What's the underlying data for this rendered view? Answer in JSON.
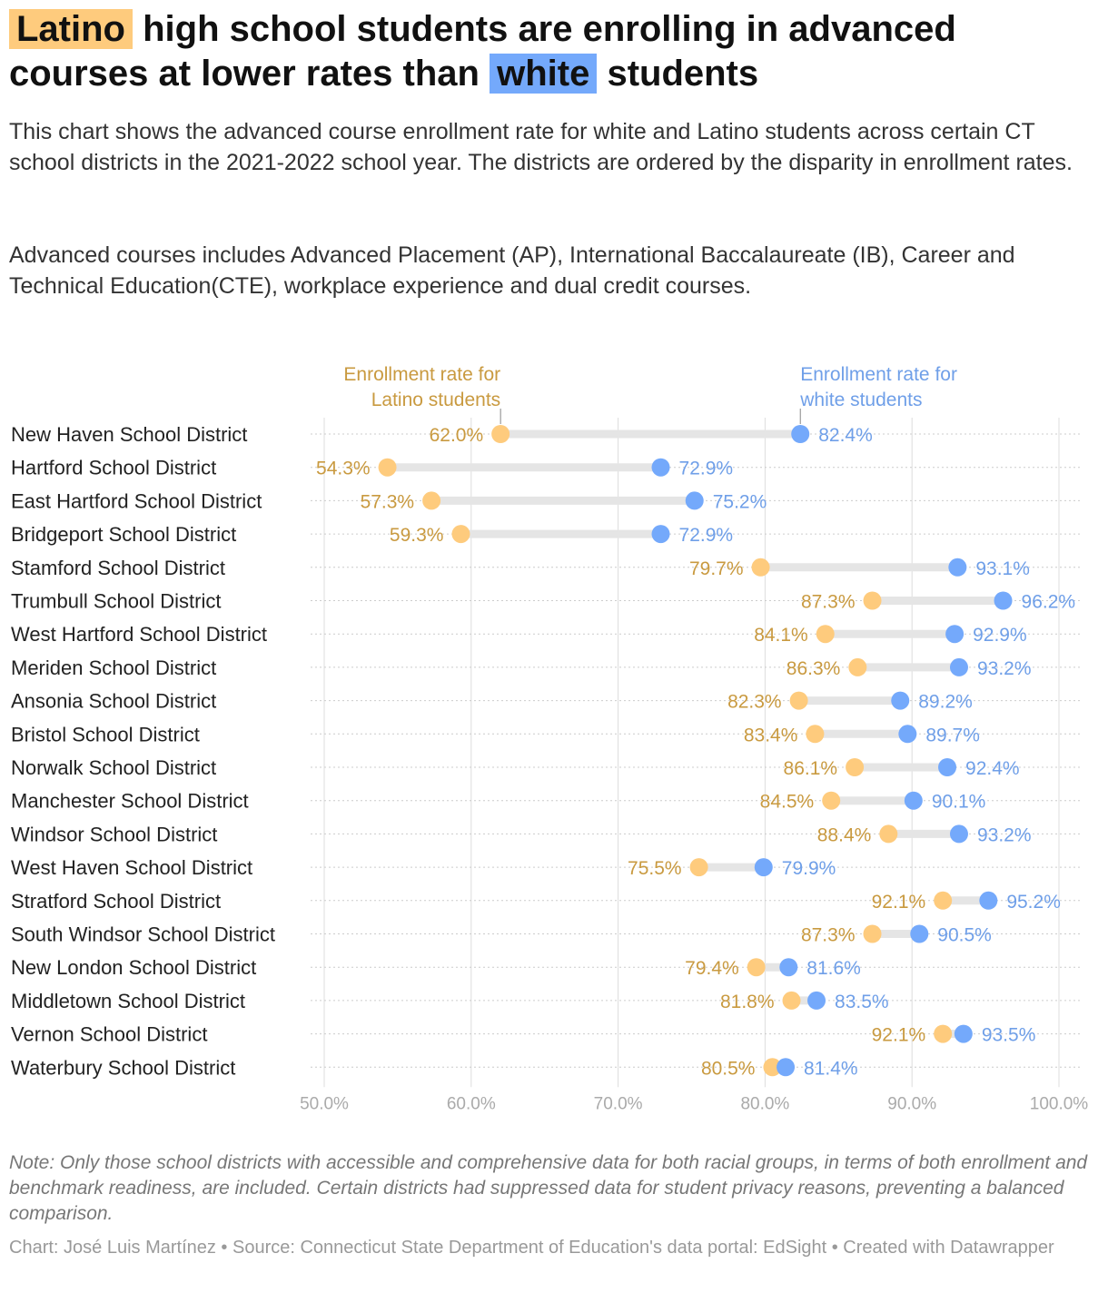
{
  "title": {
    "highlight_latino": "Latino",
    "part1": " high school students are enrolling in advanced courses at lower rates than ",
    "highlight_white": "white",
    "part2": " students"
  },
  "description": [
    "This chart shows the advanced course enrollment rate for white and Latino students across certain CT school districts in the 2021-2022 school year. The districts are ordered by the disparity in enrollment rates.",
    "Advanced courses includes Advanced Placement (AP), International Baccalaureate (IB), Career and Technical Education(CTE), workplace experience and dual credit courses."
  ],
  "note": "Note: Only those school districts with accessible and comprehensive data for both racial groups, in terms of both enrollment and benchmark readiness, are included. Certain districts had suppressed data for student privacy reasons, preventing a balanced comparison.",
  "credit": "Chart: José Luis Martínez • Source: Connecticut State Department of Education's data portal: EdSight • Created with Datawrapper",
  "colors": {
    "latino": "#fecb7d",
    "latino_text": "#c99a40",
    "white": "#74a9fb",
    "white_text": "#6f9fe8",
    "connector": "#e5e5e5",
    "grid": "#dddddd",
    "axis_text": "#aaaaaa"
  },
  "chart_data": {
    "type": "dot-range",
    "xlim": [
      50,
      100
    ],
    "xticks": [
      50,
      60,
      70,
      80,
      90,
      100
    ],
    "xtick_labels": [
      "50.0%",
      "60.0%",
      "70.0%",
      "80.0%",
      "90.0%",
      "100.0%"
    ],
    "legend": {
      "latino": [
        "Enrollment rate for",
        "Latino students"
      ],
      "white": [
        "Enrollment rate for",
        "white students"
      ]
    },
    "series": [
      {
        "name": "Latino",
        "key": "latino"
      },
      {
        "name": "white",
        "key": "white"
      }
    ],
    "rows": [
      {
        "district": "New Haven School District",
        "latino": 62.0,
        "white": 82.4
      },
      {
        "district": "Hartford School District",
        "latino": 54.3,
        "white": 72.9
      },
      {
        "district": "East Hartford School District",
        "latino": 57.3,
        "white": 75.2
      },
      {
        "district": "Bridgeport School District",
        "latino": 59.3,
        "white": 72.9
      },
      {
        "district": "Stamford School District",
        "latino": 79.7,
        "white": 93.1
      },
      {
        "district": "Trumbull School District",
        "latino": 87.3,
        "white": 96.2
      },
      {
        "district": "West Hartford School District",
        "latino": 84.1,
        "white": 92.9
      },
      {
        "district": "Meriden School District",
        "latino": 86.3,
        "white": 93.2
      },
      {
        "district": "Ansonia School District",
        "latino": 82.3,
        "white": 89.2
      },
      {
        "district": "Bristol School District",
        "latino": 83.4,
        "white": 89.7
      },
      {
        "district": "Norwalk School District",
        "latino": 86.1,
        "white": 92.4
      },
      {
        "district": "Manchester School District",
        "latino": 84.5,
        "white": 90.1
      },
      {
        "district": "Windsor School District",
        "latino": 88.4,
        "white": 93.2
      },
      {
        "district": "West Haven School District",
        "latino": 75.5,
        "white": 79.9
      },
      {
        "district": "Stratford School District",
        "latino": 92.1,
        "white": 95.2
      },
      {
        "district": "South Windsor School District",
        "latino": 87.3,
        "white": 90.5
      },
      {
        "district": "New London School District",
        "latino": 79.4,
        "white": 81.6
      },
      {
        "district": "Middletown School District",
        "latino": 81.8,
        "white": 83.5
      },
      {
        "district": "Vernon School District",
        "latino": 92.1,
        "white": 93.5
      },
      {
        "district": "Waterbury School District",
        "latino": 80.5,
        "white": 81.4
      }
    ]
  }
}
